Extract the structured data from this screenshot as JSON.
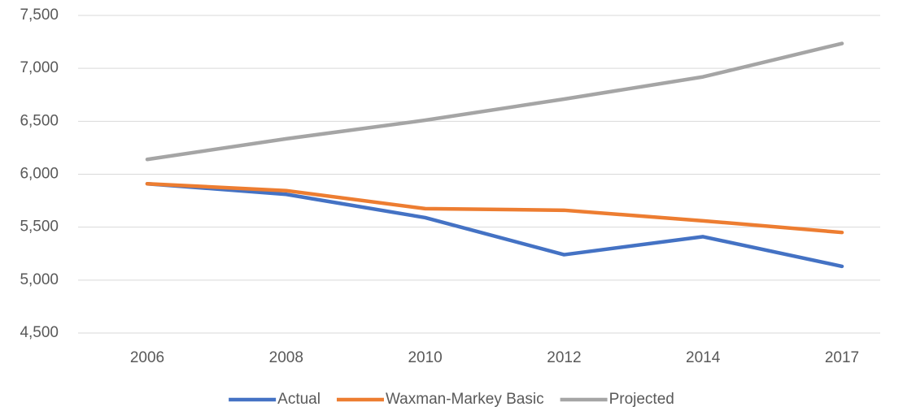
{
  "chart_data": {
    "type": "line",
    "categories": [
      "2006",
      "2008",
      "2010",
      "2012",
      "2014",
      "2017"
    ],
    "series": [
      {
        "name": "Actual",
        "color": "#4472c4",
        "values": [
          5910,
          5810,
          5590,
          5240,
          5410,
          5130
        ]
      },
      {
        "name": "Waxman-Markey Basic",
        "color": "#ed7d31",
        "values": [
          5910,
          5845,
          5675,
          5660,
          5560,
          5450
        ]
      },
      {
        "name": "Projected",
        "color": "#a5a5a5",
        "values": [
          6140,
          6335,
          6510,
          6710,
          6920,
          7235
        ]
      }
    ],
    "ylim": [
      4500,
      7500
    ],
    "yticks": [
      {
        "value": 4500,
        "label": "4,500"
      },
      {
        "value": 5000,
        "label": "5,000"
      },
      {
        "value": 5500,
        "label": "5,500"
      },
      {
        "value": 6000,
        "label": "6,000"
      },
      {
        "value": 6500,
        "label": "6,500"
      },
      {
        "value": 7000,
        "label": "7,000"
      },
      {
        "value": 7500,
        "label": "7,500"
      }
    ],
    "grid": true,
    "legend": "bottom"
  }
}
